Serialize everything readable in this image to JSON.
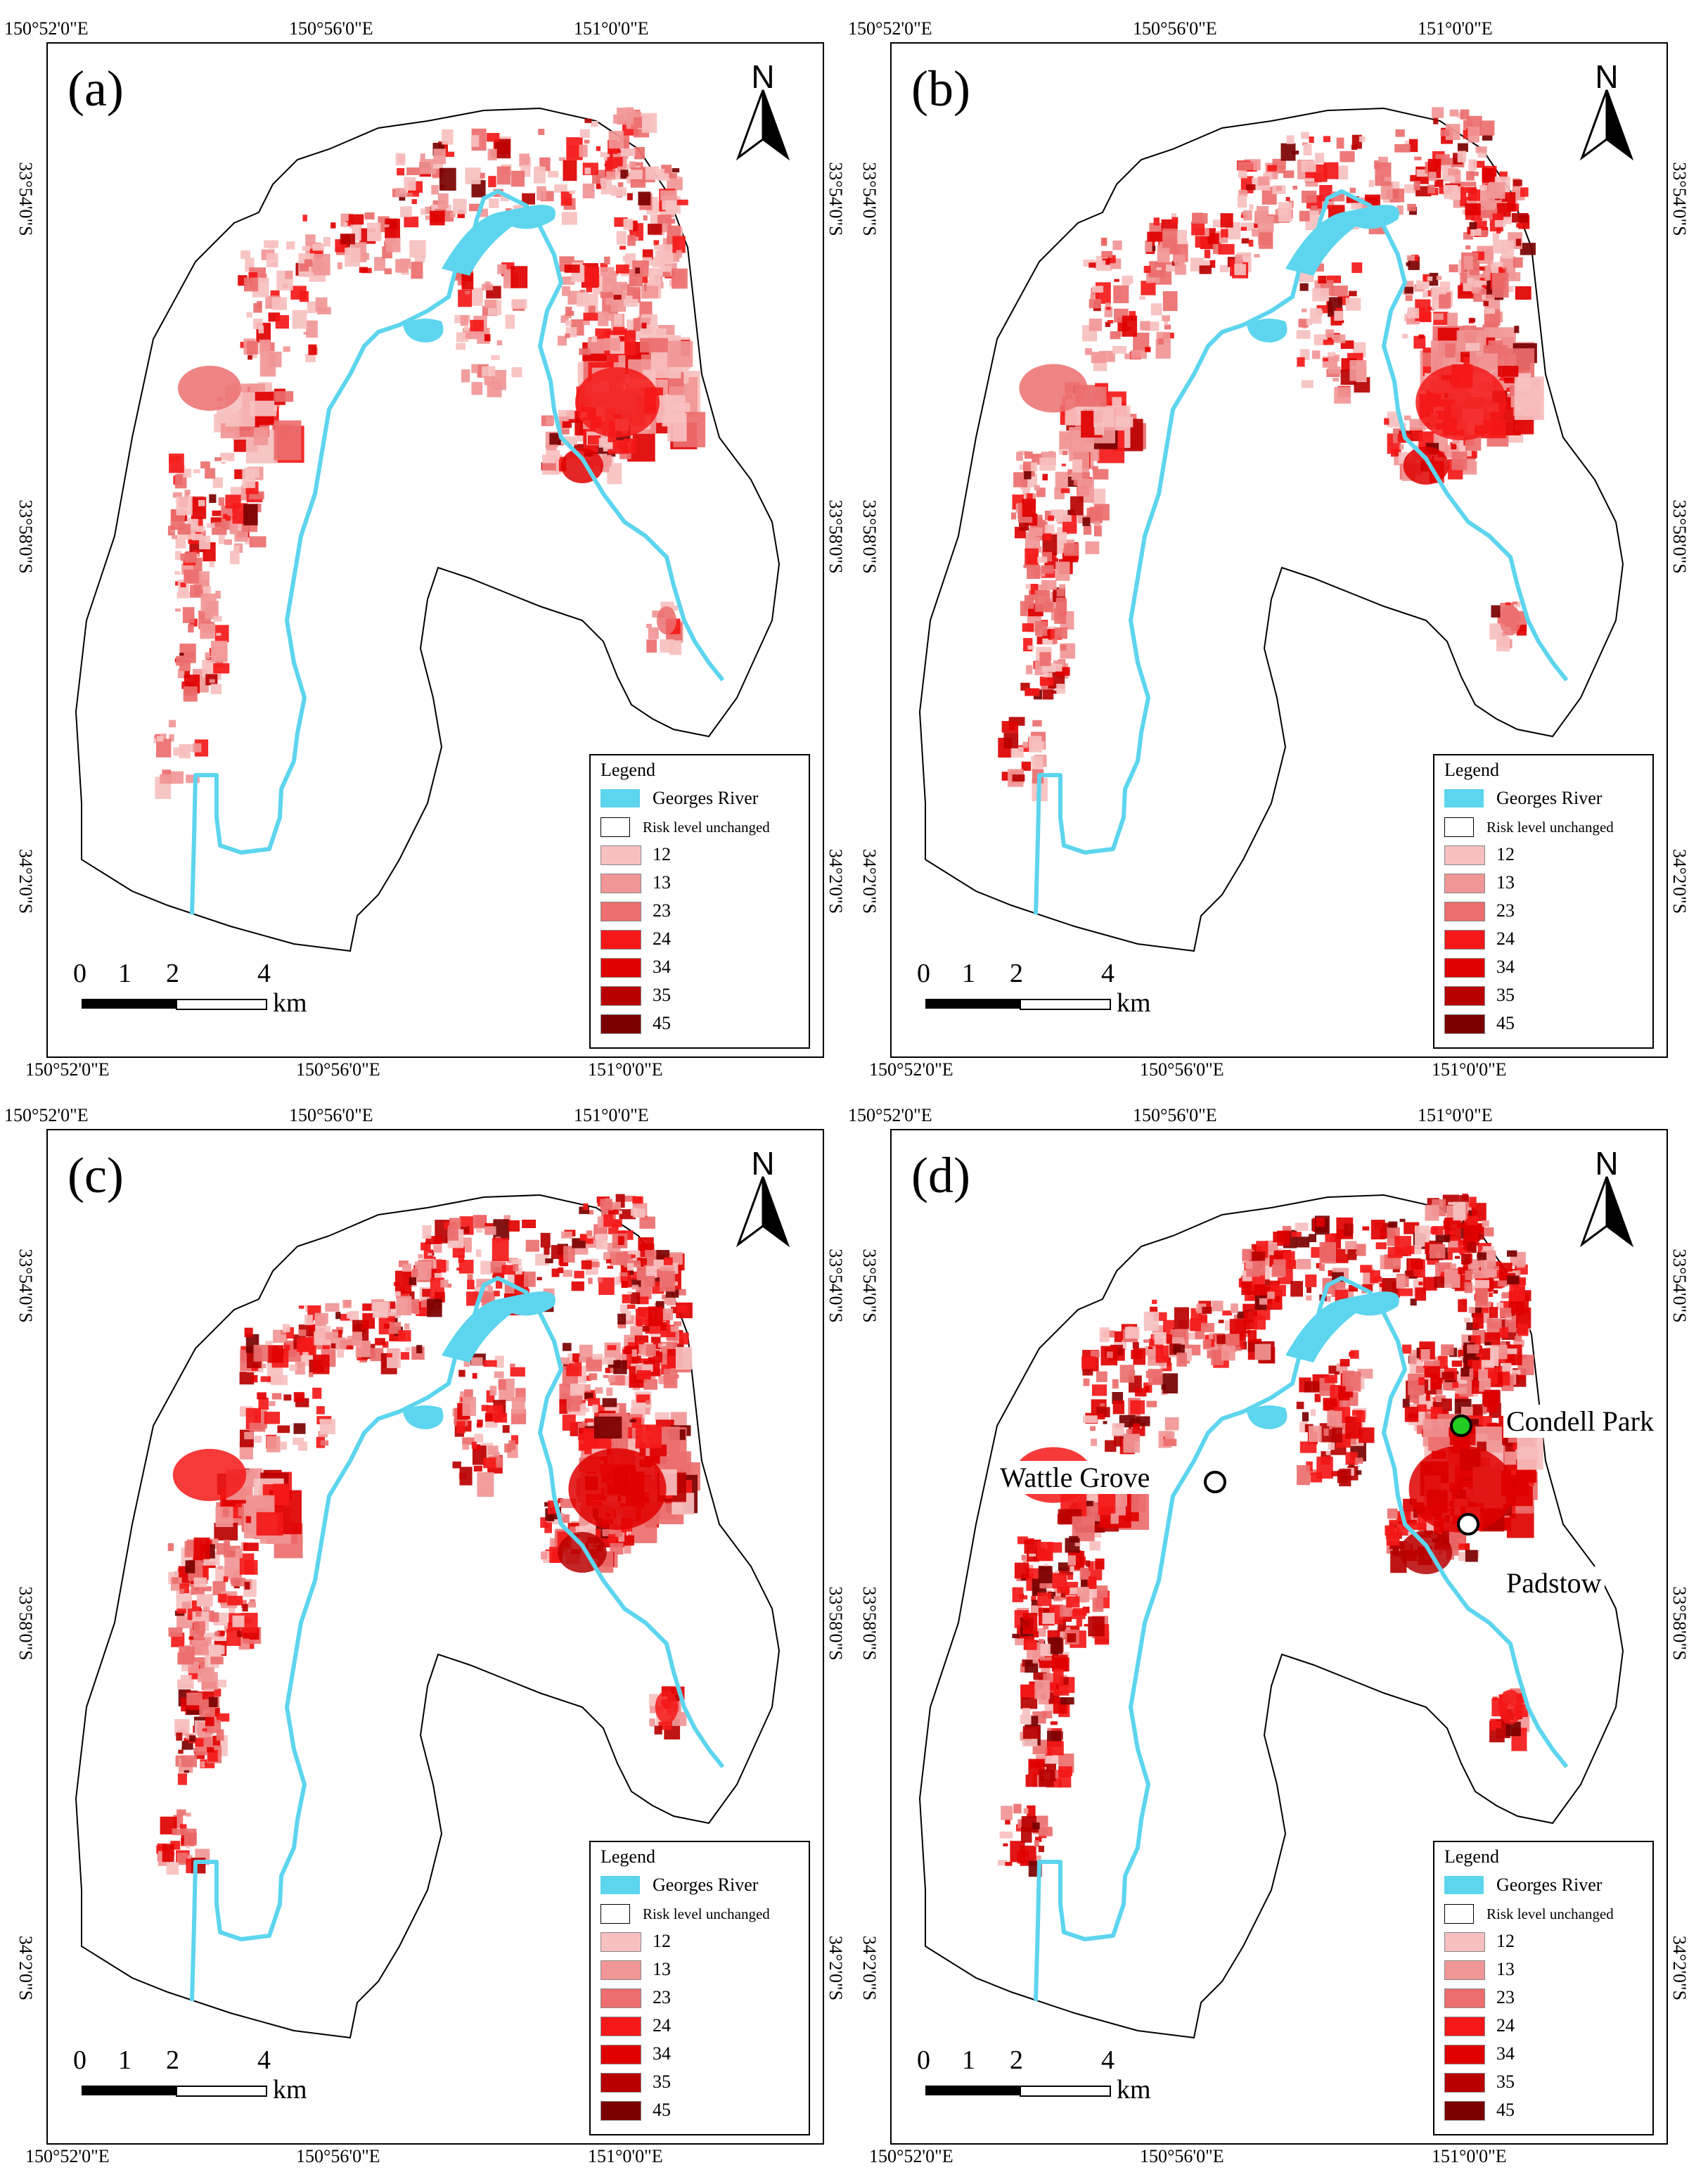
{
  "panels": [
    {
      "label": "(a)",
      "top_coords": [
        "150°52'0\"E",
        "150°56'0\"E",
        "151°0'0\"E"
      ],
      "bottom_coords": [
        "150°52'0\"E",
        "150°56'0\"E",
        "151°0'0\"E"
      ],
      "left_coords": [
        "33°54'0\"S",
        "33°58'0\"S",
        "34°2'0\"S"
      ],
      "right_coords": [
        "33°54'0\"S",
        "33°58'0\"S",
        "34°2'0\"S"
      ]
    },
    {
      "label": "(b)",
      "top_coords": [
        "150°52'0\"E",
        "150°56'0\"E",
        "151°0'0\"E"
      ],
      "bottom_coords": [
        "150°52'0\"E",
        "150°56'0\"E",
        "151°0'0\"E"
      ],
      "left_coords": [
        "33°54'0\"S",
        "33°58'0\"S",
        "34°2'0\"S"
      ],
      "right_coords": [
        "33°54'0\"S",
        "33°58'0\"S",
        "34°2'0\"S"
      ]
    },
    {
      "label": "(c)",
      "top_coords": [
        "150°52'0\"E",
        "150°56'0\"E",
        "151°0'0\"E"
      ],
      "bottom_coords": [
        "150°52'0\"E",
        "150°56'0\"E",
        "151°0'0\"E"
      ],
      "left_coords": [
        "33°54'0\"S",
        "33°58'0\"S",
        "34°2'0\"S"
      ],
      "right_coords": [
        "33°54'0\"S",
        "33°58'0\"S",
        "34°2'0\"S"
      ]
    },
    {
      "label": "(d)",
      "top_coords": [
        "150°52'0\"E",
        "150°56'0\"E",
        "151°0'0\"E"
      ],
      "bottom_coords": [
        "150°52'0\"E",
        "150°56'0\"E",
        "151°0'0\"E"
      ],
      "left_coords": [
        "33°54'0\"S",
        "33°58'0\"S",
        "34°2'0\"S"
      ],
      "right_coords": [
        "33°54'0\"S",
        "33°58'0\"S",
        "34°2'0\"S"
      ]
    }
  ],
  "north_label": "N",
  "legend": {
    "title": "Legend",
    "river": "Georges River",
    "unchanged": "Risk level unchanged",
    "classes": [
      {
        "label": "12",
        "color": "#f7c0c0"
      },
      {
        "label": "13",
        "color": "#f19696"
      },
      {
        "label": "23",
        "color": "#ec6e6e"
      },
      {
        "label": "24",
        "color": "#f41818"
      },
      {
        "label": "34",
        "color": "#e00000"
      },
      {
        "label": "35",
        "color": "#b80000"
      },
      {
        "label": "45",
        "color": "#7a0000"
      }
    ],
    "river_color": "#5dd5ee"
  },
  "scale": {
    "ticks": [
      "0",
      "1",
      "2",
      "4"
    ],
    "unit": "km"
  },
  "places": [
    {
      "name": "Condell Park",
      "marker_color": "#22cc22"
    },
    {
      "name": "Wattle Grove",
      "marker_color": "#ffffff"
    },
    {
      "name": "Padstow",
      "marker_color": "#ffffff"
    }
  ]
}
